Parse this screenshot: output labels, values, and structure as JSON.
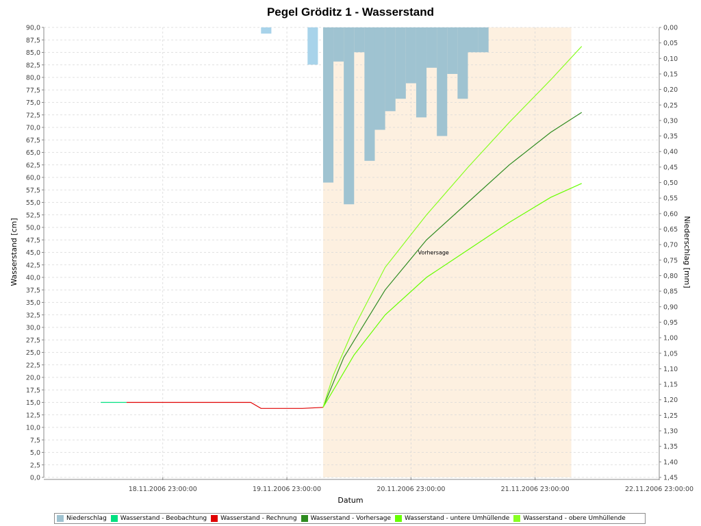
{
  "chart_data": {
    "type": "line",
    "title": "Pegel Gröditz 1 - Wasserstand",
    "xlabel": "Datum",
    "ylabel": "Wasserstand [cm]",
    "y2label": "Niederschlag [mm]",
    "ylim": [
      0,
      90
    ],
    "y2lim": [
      0,
      1.45
    ],
    "y2_inverted": true,
    "xlim": [
      "2006-11-18T00:00",
      "2006-11-22T23:00"
    ],
    "x_ticks": [
      "18.11.2006 23:00:00",
      "19.11.2006 23:00:00",
      "20.11.2006 23:00:00",
      "21.11.2006 23:00:00",
      "22.11.2006 23:00:00"
    ],
    "y_ticks": [
      "0,0",
      "2,5",
      "5,0",
      "7,5",
      "10,0",
      "12,5",
      "15,0",
      "17,5",
      "20,0",
      "22,5",
      "25,0",
      "27,5",
      "30,0",
      "32,5",
      "35,0",
      "37,5",
      "40,0",
      "42,5",
      "45,0",
      "47,5",
      "50,0",
      "52,5",
      "55,0",
      "57,5",
      "60,0",
      "62,5",
      "65,0",
      "67,5",
      "70,0",
      "72,5",
      "75,0",
      "77,5",
      "80,0",
      "82,5",
      "85,0",
      "87,5",
      "90,0"
    ],
    "y2_ticks": [
      "0,00",
      "0,05",
      "0,10",
      "0,15",
      "0,20",
      "0,25",
      "0,30",
      "0,35",
      "0,40",
      "0,45",
      "0,50",
      "0,55",
      "0,60",
      "0,65",
      "0,70",
      "0,75",
      "0,80",
      "0,85",
      "0,90",
      "0,95",
      "1,00",
      "1,05",
      "1,10",
      "1,15",
      "1,20",
      "1,25",
      "1,30",
      "1,35",
      "1,40",
      "1,45"
    ],
    "grid": true,
    "legend_position": "bottom",
    "forecast_region": {
      "start": "2006-11-20T06:00",
      "end": "2006-11-22T06:00",
      "color": "#fdf0e0"
    },
    "annotation": {
      "text": "Vorhersage",
      "x": "2006-11-21T03:00",
      "y": 45
    },
    "precipitation": {
      "name": "Niederschlag",
      "color": "#9fc3d1",
      "bars": [
        {
          "start": "2006-11-19T18:00",
          "end": "2006-11-19T20:00",
          "value": 0.02,
          "color": "#a8d3ea"
        },
        {
          "start": "2006-11-20T03:00",
          "end": "2006-11-20T05:00",
          "value": 0.12,
          "color": "#a8d3ea"
        },
        {
          "start": "2006-11-20T06:00",
          "end": "2006-11-20T08:00",
          "value": 0.5
        },
        {
          "start": "2006-11-20T08:00",
          "end": "2006-11-20T10:00",
          "value": 0.11
        },
        {
          "start": "2006-11-20T10:00",
          "end": "2006-11-20T12:00",
          "value": 0.57
        },
        {
          "start": "2006-11-20T12:00",
          "end": "2006-11-20T14:00",
          "value": 0.08
        },
        {
          "start": "2006-11-20T14:00",
          "end": "2006-11-20T16:00",
          "value": 0.43
        },
        {
          "start": "2006-11-20T16:00",
          "end": "2006-11-20T18:00",
          "value": 0.33
        },
        {
          "start": "2006-11-20T18:00",
          "end": "2006-11-20T20:00",
          "value": 0.27
        },
        {
          "start": "2006-11-20T20:00",
          "end": "2006-11-20T22:00",
          "value": 0.23
        },
        {
          "start": "2006-11-20T22:00",
          "end": "2006-11-21T00:00",
          "value": 0.18
        },
        {
          "start": "2006-11-21T00:00",
          "end": "2006-11-21T02:00",
          "value": 0.29
        },
        {
          "start": "2006-11-21T02:00",
          "end": "2006-11-21T04:00",
          "value": 0.13
        },
        {
          "start": "2006-11-21T04:00",
          "end": "2006-11-21T06:00",
          "value": 0.35
        },
        {
          "start": "2006-11-21T06:00",
          "end": "2006-11-21T08:00",
          "value": 0.15
        },
        {
          "start": "2006-11-21T08:00",
          "end": "2006-11-21T10:00",
          "value": 0.23
        },
        {
          "start": "2006-11-21T10:00",
          "end": "2006-11-21T12:00",
          "value": 0.08
        },
        {
          "start": "2006-11-21T12:00",
          "end": "2006-11-21T14:00",
          "value": 0.08
        },
        {
          "start": "2006-11-21T14:00",
          "end": "2006-11-21T16:00",
          "value": 0.0
        },
        {
          "start": "2006-11-21T16:00",
          "end": "2006-11-21T18:00",
          "value": 0.0
        }
      ]
    },
    "series": [
      {
        "name": "Wasserstand - Beobachtung",
        "color": "#00e080",
        "points": [
          [
            "2006-11-18T11:00",
            15.0
          ],
          [
            "2006-11-18T16:00",
            15.0
          ]
        ]
      },
      {
        "name": "Wasserstand - Rechnung",
        "color": "#e00000",
        "points": [
          [
            "2006-11-18T16:00",
            15.0
          ],
          [
            "2006-11-19T16:00",
            15.0
          ],
          [
            "2006-11-19T18:00",
            13.8
          ],
          [
            "2006-11-20T02:00",
            13.8
          ],
          [
            "2006-11-20T06:00",
            14.0
          ]
        ]
      },
      {
        "name": "Wasserstand - Vorhersage",
        "color": "#2e8b1f",
        "points": [
          [
            "2006-11-20T06:00",
            14.0
          ],
          [
            "2006-11-20T10:00",
            24.0
          ],
          [
            "2006-11-20T18:00",
            37.5
          ],
          [
            "2006-11-21T02:00",
            47.5
          ],
          [
            "2006-11-21T10:00",
            55.0
          ],
          [
            "2006-11-21T18:00",
            62.5
          ],
          [
            "2006-11-22T02:00",
            69.0
          ],
          [
            "2006-11-22T08:00",
            73.0
          ]
        ]
      },
      {
        "name": "Wasserstand - untere Umhüllende",
        "color": "#66ff00",
        "points": [
          [
            "2006-11-20T06:00",
            14.0
          ],
          [
            "2006-11-20T08:00",
            17.5
          ],
          [
            "2006-11-20T12:00",
            24.5
          ],
          [
            "2006-11-20T18:00",
            32.5
          ],
          [
            "2006-11-21T02:00",
            40.0
          ],
          [
            "2006-11-21T10:00",
            45.5
          ],
          [
            "2006-11-21T18:00",
            51.0
          ],
          [
            "2006-11-22T02:00",
            56.0
          ],
          [
            "2006-11-22T08:00",
            58.8
          ]
        ]
      },
      {
        "name": "Wasserstand - obere Umhüllende",
        "color": "#88ff22",
        "points": [
          [
            "2006-11-20T06:00",
            14.0
          ],
          [
            "2006-11-20T08:00",
            20.5
          ],
          [
            "2006-11-20T12:00",
            30.0
          ],
          [
            "2006-11-20T18:00",
            42.0
          ],
          [
            "2006-11-21T02:00",
            52.5
          ],
          [
            "2006-11-21T10:00",
            62.0
          ],
          [
            "2006-11-21T18:00",
            71.0
          ],
          [
            "2006-11-22T02:00",
            79.5
          ],
          [
            "2006-11-22T08:00",
            86.2
          ]
        ]
      }
    ]
  },
  "legend": [
    {
      "label": "Niederschlag",
      "color": "#9fc3d1"
    },
    {
      "label": "Wasserstand - Beobachtung",
      "color": "#00e080"
    },
    {
      "label": "Wasserstand - Rechnung",
      "color": "#e00000"
    },
    {
      "label": "Wasserstand - Vorhersage",
      "color": "#2e8b1f"
    },
    {
      "label": "Wasserstand - untere Umhüllende",
      "color": "#66ff00"
    },
    {
      "label": "Wasserstand - obere Umhüllende",
      "color": "#88ff22"
    }
  ]
}
